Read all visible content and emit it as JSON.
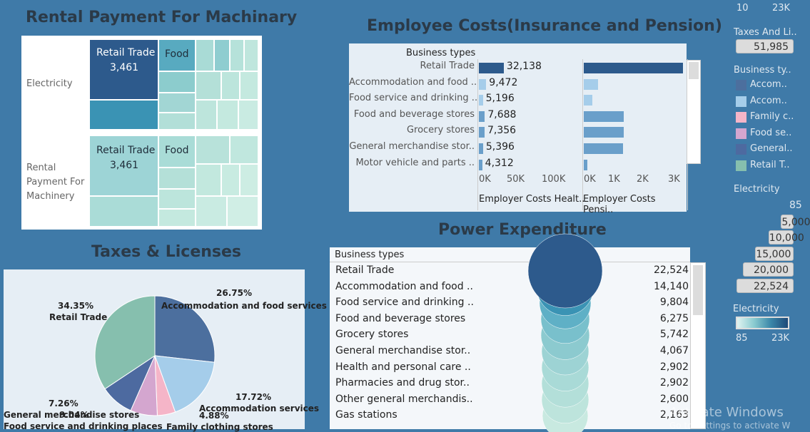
{
  "top_scale": {
    "min": "10",
    "max": "23K"
  },
  "rental": {
    "title": "Rental Payment For Machinary",
    "row1": "Electricity",
    "row2": "Rental Payment For Machinery",
    "cells": [
      {
        "label": "Retail Trade",
        "value": "3,461"
      },
      {
        "label": "Food"
      },
      {
        "label": "Retail Trade",
        "value": "3,461"
      },
      {
        "label": "Food"
      }
    ]
  },
  "employee": {
    "title": "Employee Costs(Insurance and Pension)",
    "header": "Business types",
    "rows": [
      {
        "label": "Retail Trade",
        "value": "32,138",
        "v": 32138,
        "p": 3300
      },
      {
        "label": "Accommodation and food ..",
        "value": "9,472",
        "v": 9472,
        "p": 480
      },
      {
        "label": "Food service and drinking ..",
        "value": "5,196",
        "v": 5196,
        "p": 290
      },
      {
        "label": "Food and beverage stores",
        "value": "7,688",
        "v": 7688,
        "p": 1330
      },
      {
        "label": "Grocery stores",
        "value": "7,356",
        "v": 7356,
        "p": 1320
      },
      {
        "label": "General merchandise stor..",
        "value": "5,396",
        "v": 5396,
        "p": 1300
      },
      {
        "label": "Motor vehicle and parts ..",
        "value": "4,312",
        "v": 4312,
        "p": 130
      }
    ],
    "ticks1": [
      "0K",
      "50K",
      "100K"
    ],
    "ticks2": [
      "0K",
      "1K",
      "2K",
      "3K"
    ],
    "col1": "Employer Costs Healt..",
    "col2": "Employer Costs Pensi.."
  },
  "taxes": {
    "title": "Taxes & Licenses",
    "labels": [
      {
        "pct": "34.35%",
        "name": "Retail Trade"
      },
      {
        "pct": "26.75%",
        "name": "Accommodation and food services"
      },
      {
        "pct": "17.72%",
        "name": "Accommodation services"
      },
      {
        "pct": "4.88%",
        "name": "Family clothing stores"
      },
      {
        "pct": "7.26%",
        "name": "General merchandise stores"
      },
      {
        "pct": "9.04%",
        "name": "Food service and drinking places"
      }
    ]
  },
  "power": {
    "title": "Power Expenditure",
    "header": "Business types",
    "rows": [
      {
        "label": "Retail Trade",
        "value": "22,524"
      },
      {
        "label": "Accommodation and food ..",
        "value": "14,140"
      },
      {
        "label": "Food service and drinking ..",
        "value": "9,804"
      },
      {
        "label": "Food and beverage stores",
        "value": "6,275"
      },
      {
        "label": "Grocery stores",
        "value": "5,742"
      },
      {
        "label": "General merchandise stor..",
        "value": "4,067"
      },
      {
        "label": "Health and personal care ..",
        "value": "2,902"
      },
      {
        "label": "Pharmacies and drug stor..",
        "value": "2,902"
      },
      {
        "label": "Other general merchandis..",
        "value": "2,600"
      },
      {
        "label": "Gas stations",
        "value": "2,163"
      }
    ]
  },
  "legend": {
    "taxes_title": "Taxes And Li..",
    "taxes_value": "51,985",
    "business_title": "Business ty..",
    "business_items": [
      {
        "label": "Accom..",
        "color": "#4c6f9e"
      },
      {
        "label": "Accom..",
        "color": "#a5cdea"
      },
      {
        "label": "Family c..",
        "color": "#f5b5c8"
      },
      {
        "label": "Food se..",
        "color": "#d4a6cf"
      },
      {
        "label": "General..",
        "color": "#4d6aa0"
      },
      {
        "label": "Retail T..",
        "color": "#86bfae"
      }
    ],
    "electricity_title": "Electricity",
    "electricity_values": [
      "85",
      "5,000",
      "10,000",
      "15,000",
      "20,000",
      "22,524"
    ],
    "electricity_fills": [
      0.004,
      0.22,
      0.44,
      0.67,
      0.89,
      1.0
    ],
    "electricity2_title": "Electricity",
    "electricity2_min": "85",
    "electricity2_max": "23K"
  },
  "watermark": {
    "line1": "Activate Windows",
    "line2": "Go to Settings to activate W"
  }
}
